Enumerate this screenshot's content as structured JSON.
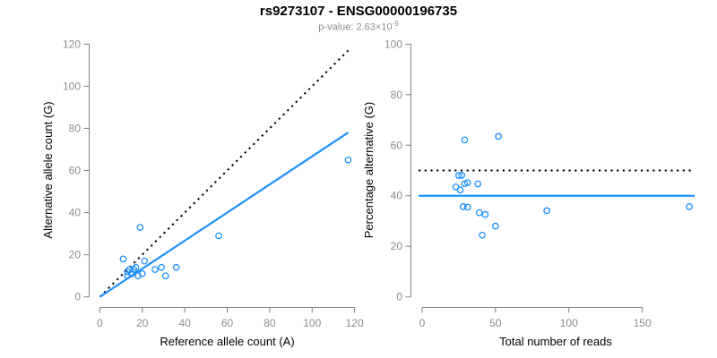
{
  "figure": {
    "title": "rs9273107 - ENSG00000196735",
    "subtitle_prefix": "p-value: 2.63×10",
    "subtitle_exponent": "-9"
  },
  "colors": {
    "points": "#1E90FF",
    "fit_line": "#1E90FF",
    "reference_line": "#000000",
    "axis": "#808080",
    "tick_labels": "#8C8C8C",
    "axis_titles": "#000000",
    "title": "#000000",
    "subtitle": "#8C8C8C",
    "background": "#FFFFFF"
  },
  "chart_data": [
    {
      "id": "allele-count-scatter",
      "type": "scatter",
      "title": "",
      "xlabel": "Reference allele count (A)",
      "ylabel": "Alternative allele count (G)",
      "xlim": [
        0,
        120
      ],
      "ylim": [
        0,
        120
      ],
      "xticks": [
        0,
        20,
        40,
        60,
        80,
        100,
        120
      ],
      "yticks": [
        0,
        20,
        40,
        60,
        80,
        100,
        120
      ],
      "grid": false,
      "legend": null,
      "points": [
        [
          11,
          18
        ],
        [
          19,
          33
        ],
        [
          21,
          17
        ],
        [
          13,
          12
        ],
        [
          14,
          13
        ],
        [
          13,
          10
        ],
        [
          15,
          11
        ],
        [
          16,
          13
        ],
        [
          17,
          14
        ],
        [
          18,
          10
        ],
        [
          20,
          11
        ],
        [
          26,
          13
        ],
        [
          29,
          14
        ],
        [
          31,
          10
        ],
        [
          36,
          14
        ],
        [
          56,
          29
        ],
        [
          117,
          65
        ]
      ],
      "lines": [
        {
          "name": "identity-line",
          "style": "dotted",
          "color": "#000000",
          "slope": 1,
          "intercept": 0,
          "x_range": [
            0,
            117
          ]
        },
        {
          "name": "fit-line",
          "style": "solid",
          "color": "#1E90FF",
          "slope": 0.667,
          "intercept": 0,
          "x_range": [
            0,
            117
          ]
        }
      ]
    },
    {
      "id": "percentage-alternative-scatter",
      "type": "scatter",
      "title": "",
      "xlabel": "Total number of reads",
      "ylabel": "Percentage alternative (G)",
      "xlim": [
        0,
        182
      ],
      "ylim": [
        0,
        100
      ],
      "xticks": [
        0,
        50,
        100,
        150
      ],
      "yticks": [
        0,
        20,
        40,
        60,
        80,
        100
      ],
      "grid": false,
      "legend": null,
      "points": [
        [
          29,
          62.1
        ],
        [
          52,
          63.5
        ],
        [
          38,
          44.7
        ],
        [
          25,
          48.0
        ],
        [
          27,
          48.1
        ],
        [
          23,
          43.5
        ],
        [
          26,
          42.3
        ],
        [
          29,
          44.8
        ],
        [
          31,
          45.2
        ],
        [
          28,
          35.7
        ],
        [
          31,
          35.5
        ],
        [
          39,
          33.3
        ],
        [
          43,
          32.6
        ],
        [
          41,
          24.4
        ],
        [
          50,
          28.0
        ],
        [
          85,
          34.1
        ],
        [
          182,
          35.7
        ]
      ],
      "lines": [
        {
          "name": "fifty-percent-line",
          "style": "dotted",
          "color": "#000000",
          "y": 50
        },
        {
          "name": "mean-percentage-line",
          "style": "solid",
          "color": "#1E90FF",
          "y": 40
        }
      ]
    }
  ]
}
